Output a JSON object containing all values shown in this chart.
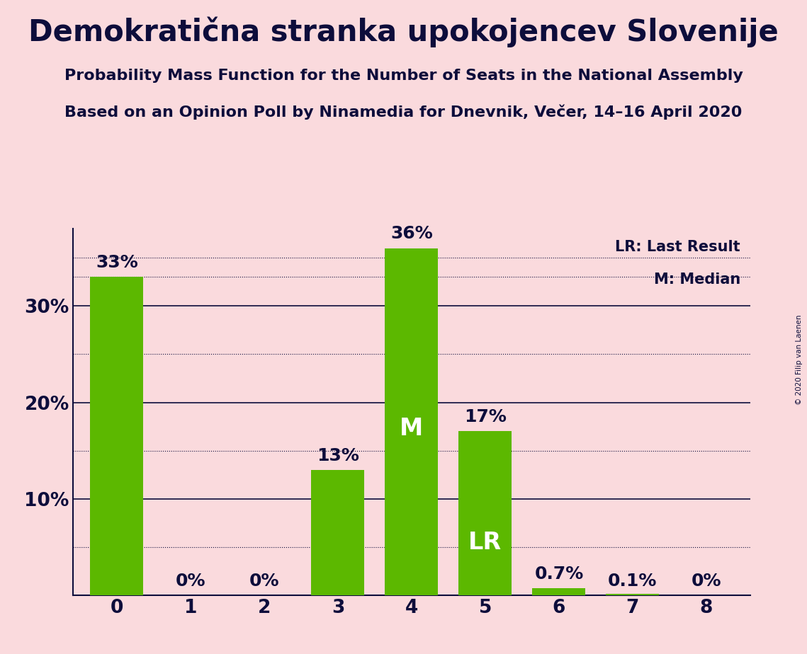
{
  "title": "Demokratična stranka upokojencev Slovenije",
  "subtitle1": "Probability Mass Function for the Number of Seats in the National Assembly",
  "subtitle2": "Based on an Opinion Poll by Ninamedia for Dnevnik, Večer, 14–16 April 2020",
  "copyright": "© 2020 Filip van Laenen",
  "categories": [
    0,
    1,
    2,
    3,
    4,
    5,
    6,
    7,
    8
  ],
  "values": [
    33,
    0,
    0,
    13,
    36,
    17,
    0.7,
    0.1,
    0
  ],
  "bar_color": "#5cb800",
  "background_color": "#fadadd",
  "title_color": "#0d0d3b",
  "bar_labels": [
    "33%",
    "0%",
    "0%",
    "13%",
    "36%",
    "17%",
    "0.7%",
    "0.1%",
    "0%"
  ],
  "ylim": [
    0,
    38
  ],
  "yticks": [
    10,
    20,
    30
  ],
  "ytick_labels": [
    "10%",
    "20%",
    "30%"
  ],
  "solid_gridlines": [
    10,
    20,
    30
  ],
  "dotted_gridlines": [
    5,
    15,
    25,
    35
  ],
  "dotted_line_y": 33,
  "median_seat": 4,
  "lr_seat": 5,
  "median_label": "M",
  "lr_label": "LR",
  "legend_lr": "LR: Last Result",
  "legend_m": "M: Median",
  "title_fontsize": 30,
  "subtitle_fontsize": 16,
  "label_fontsize": 18,
  "tick_fontsize": 19,
  "inner_label_fontsize": 24
}
